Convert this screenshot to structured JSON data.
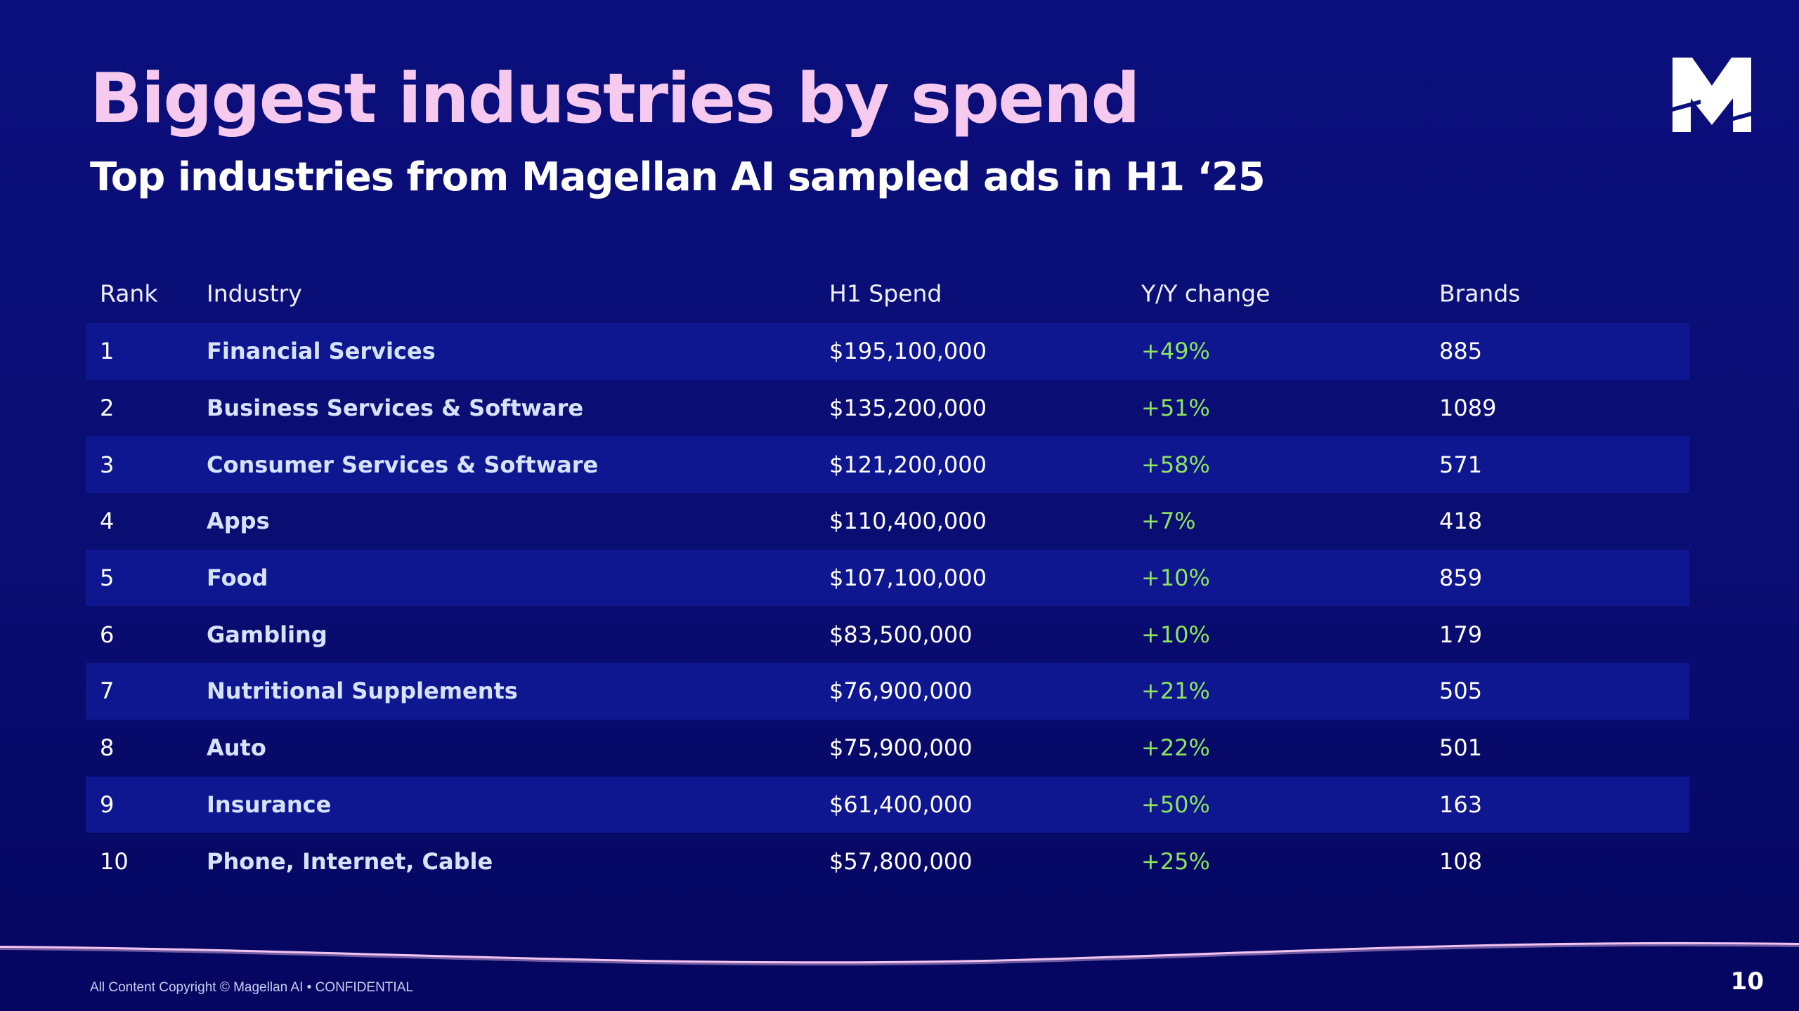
{
  "title": "Biggest industries by spend",
  "subtitle": "Top industries from Magellan AI sampled ads in H1 ‘25",
  "table": {
    "headers": {
      "rank": "Rank",
      "industry": "Industry",
      "spend": "H1 Spend",
      "change": "Y/Y change",
      "brands": "Brands"
    },
    "rows": [
      {
        "rank": "1",
        "industry": "Financial Services",
        "spend": "$195,100,000",
        "change": "+49%",
        "brands": "885"
      },
      {
        "rank": "2",
        "industry": "Business Services & Software",
        "spend": "$135,200,000",
        "change": "+51%",
        "brands": "1089"
      },
      {
        "rank": "3",
        "industry": "Consumer Services & Software",
        "spend": "$121,200,000",
        "change": "+58%",
        "brands": "571"
      },
      {
        "rank": "4",
        "industry": "Apps",
        "spend": "$110,400,000",
        "change": "+7%",
        "brands": "418"
      },
      {
        "rank": "5",
        "industry": "Food",
        "spend": "$107,100,000",
        "change": "+10%",
        "brands": "859"
      },
      {
        "rank": "6",
        "industry": "Gambling",
        "spend": "$83,500,000",
        "change": "+10%",
        "brands": "179"
      },
      {
        "rank": "7",
        "industry": "Nutritional Supplements",
        "spend": "$76,900,000",
        "change": "+21%",
        "brands": "505"
      },
      {
        "rank": "8",
        "industry": "Auto",
        "spend": "$75,900,000",
        "change": "+22%",
        "brands": "501"
      },
      {
        "rank": "9",
        "industry": "Insurance",
        "spend": "$61,400,000",
        "change": "+50%",
        "brands": "163"
      },
      {
        "rank": "10",
        "industry": "Phone, Internet, Cable",
        "spend": "$57,800,000",
        "change": "+25%",
        "brands": "108"
      }
    ]
  },
  "footer": {
    "copyright": "All Content Copyright © Magellan AI • CONFIDENTIAL",
    "page_number": "10"
  },
  "logo": {
    "icon": "magellan-m-logo-icon"
  },
  "colors": {
    "background": "#0b0f7c",
    "title": "#f6c9ef",
    "row_alt": "#0e1690",
    "change_positive": "#8fe35d",
    "industry_text": "#d6e3ff",
    "wave": "#f3c4ef"
  }
}
